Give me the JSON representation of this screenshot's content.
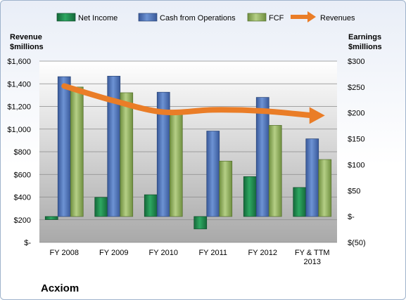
{
  "chart_data": {
    "type": "bar",
    "title": "Acxiom",
    "categories": [
      "FY 2008",
      "FY 2009",
      "FY 2010",
      "FY 2011",
      "FY 2012",
      "FY & TTM 2013"
    ],
    "category_lines": [
      [
        "FY 2008"
      ],
      [
        "FY 2009"
      ],
      [
        "FY 2010"
      ],
      [
        "FY 2011"
      ],
      [
        "FY 2012"
      ],
      [
        "FY & TTM",
        "2013"
      ]
    ],
    "series": [
      {
        "name": "Net Income",
        "axis": "right",
        "render": "bar",
        "color": "#1e8a4c",
        "values": [
          -6,
          37,
          42,
          -24,
          77,
          56
        ]
      },
      {
        "name": "Cash from Operations",
        "axis": "right",
        "render": "bar",
        "color": "#4a72b8",
        "values": [
          270,
          271,
          240,
          165,
          230,
          150
        ]
      },
      {
        "name": "FCF",
        "axis": "right",
        "render": "bar",
        "color": "#8eb15a",
        "values": [
          250,
          239,
          200,
          107,
          176,
          110
        ]
      },
      {
        "name": "Revenues",
        "axis": "left",
        "render": "arrow-line",
        "color": "#ea7d27",
        "values": [
          1380,
          1250,
          1150,
          1170,
          1160,
          1120
        ]
      }
    ],
    "left_axis": {
      "label_lines": [
        "Revenue",
        "$millions"
      ],
      "min": 0,
      "max": 1600,
      "ticks": [
        0,
        200,
        400,
        600,
        800,
        1000,
        1200,
        1400,
        1600
      ],
      "tick_labels": [
        "$-",
        "$200",
        "$400",
        "$600",
        "$800",
        "$1,000",
        "$1,200",
        "$1,400",
        "$1,600"
      ]
    },
    "right_axis": {
      "label_lines": [
        "Earnings",
        "$millions"
      ],
      "min": -50,
      "max": 300,
      "ticks": [
        -50,
        0,
        50,
        100,
        150,
        200,
        250,
        300
      ],
      "tick_labels": [
        "$(50)",
        "$-",
        "$50",
        "$100",
        "$150",
        "$200",
        "$250",
        "$300"
      ]
    },
    "legend_position": "top",
    "grid": true
  }
}
